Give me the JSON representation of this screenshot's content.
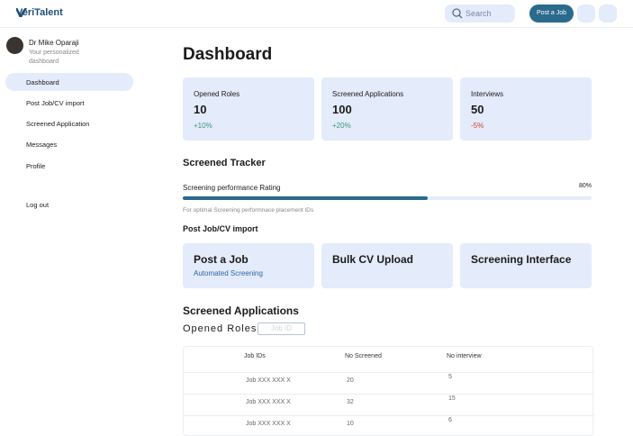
{
  "header": {
    "logo": "VeriTalent",
    "search_placeholder": "Search",
    "post_button": "Post a Job"
  },
  "sidebar": {
    "user_name": "Dr Mike Oparaji",
    "user_subtitle": "Your personalized dashboard",
    "nav": [
      "Dashboard",
      "Post Job/CV import",
      "Screened Application",
      "Messages",
      "Profile"
    ],
    "logout": "Log out"
  },
  "main": {
    "title": "Dashboard",
    "stats": [
      {
        "label": "Opened Roles",
        "value": "10",
        "change": "+10%"
      },
      {
        "label": "Screened Applications",
        "value": "100",
        "change": "+20%"
      },
      {
        "label": "Interviews",
        "value": "50",
        "change": "-5%"
      }
    ],
    "tracker": {
      "title": "Screened Tracker",
      "label": "Screening performance Rating",
      "value": "80%",
      "note": "For optimal Screening performnace placement IDs"
    },
    "import": {
      "title": "Post Job/CV import",
      "cards": [
        {
          "title": "Post a Job",
          "subtitle": "Automated Screening"
        },
        {
          "title": "Bulk CV Upload"
        },
        {
          "title": "Screening Interface"
        }
      ]
    },
    "applications": {
      "title": "Screened Applications",
      "filter_label": "Opened Roles",
      "filter_placeholder": "Job ID",
      "table": {
        "headers": [
          "Job IDs",
          "No Screened",
          "No interview"
        ],
        "rows": [
          [
            "Job XXX XXX X",
            "20",
            "5"
          ],
          [
            "Job XXX XXX X",
            "32",
            "15"
          ],
          [
            "Job XXX XXX X",
            "10",
            "6"
          ]
        ]
      }
    }
  }
}
